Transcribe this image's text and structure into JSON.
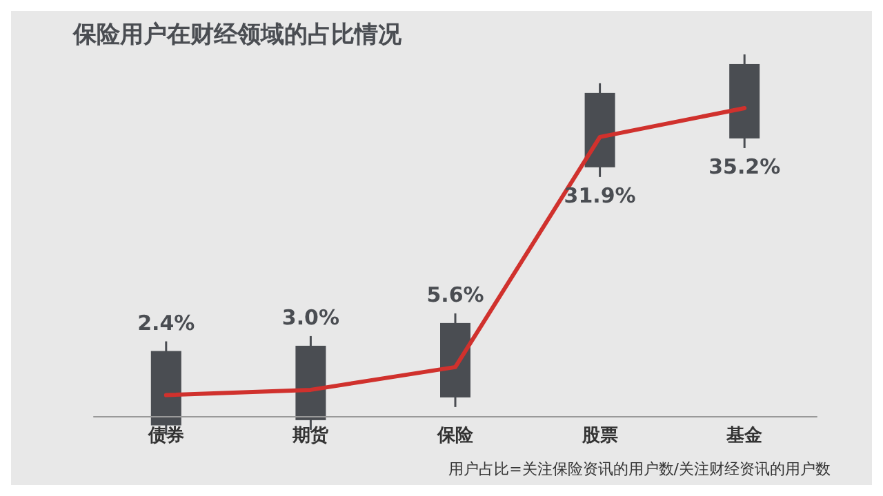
{
  "chart_data": {
    "type": "line",
    "title": "保险用户在财经领域的占比情况",
    "categories": [
      "债券",
      "期货",
      "保险",
      "股票",
      "基金"
    ],
    "marker": "none",
    "line_style": "solid",
    "annotations": [
      "用户占比=关注保险资讯的用户数/关注财经资讯的用户数"
    ],
    "series": [
      {
        "color": "#d0312d",
        "values": [
          2.4,
          3.0,
          5.6,
          31.9,
          35.2
        ],
        "value_labels": [
          "2.4%",
          "3.0%",
          "5.6%",
          "31.9%",
          "35.2%"
        ]
      }
    ]
  }
}
